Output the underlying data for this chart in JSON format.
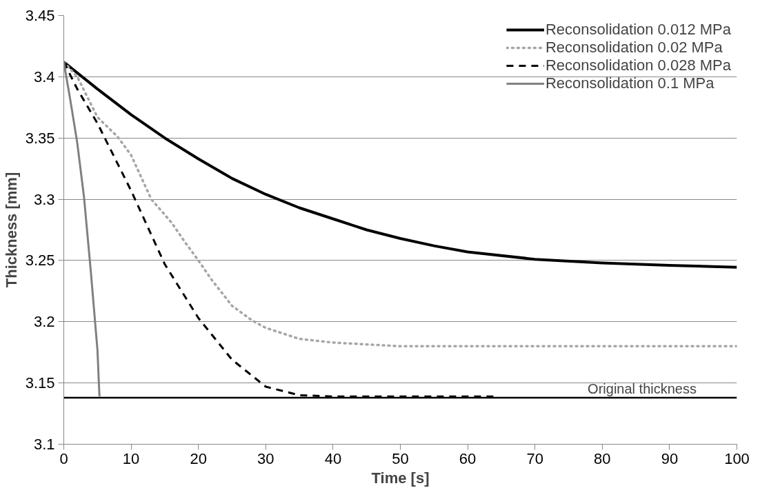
{
  "chart_data": {
    "type": "line",
    "xlabel": "Time [s]",
    "ylabel": "Thickness [mm]",
    "xlim": [
      0,
      100
    ],
    "xticks": [
      0,
      10,
      20,
      30,
      40,
      50,
      60,
      70,
      80,
      90,
      100
    ],
    "ylim": [
      3.1,
      3.45
    ],
    "yticks": [
      3.1,
      3.15,
      3.2,
      3.25,
      3.3,
      3.35,
      3.4,
      3.45
    ],
    "grid": "y",
    "legend": "top right",
    "series": [
      {
        "name": "Reconsolidation 0.012 MPa",
        "color": "#000000",
        "line_style": "solid",
        "x": [
          0,
          5,
          10,
          15,
          20,
          25,
          30,
          35,
          40,
          45,
          50,
          55,
          60,
          70,
          80,
          90,
          100
        ],
        "values": [
          3.412,
          3.39,
          3.369,
          3.35,
          3.333,
          3.317,
          3.304,
          3.293,
          3.284,
          3.275,
          3.268,
          3.262,
          3.257,
          3.251,
          3.248,
          3.246,
          3.2445
        ]
      },
      {
        "name": "Reconsolidation 0.02 MPa",
        "color": "#a6a6a6",
        "line_style": "dotted",
        "x": [
          0,
          2,
          5,
          8,
          10,
          13,
          16,
          18,
          20,
          22,
          25,
          28,
          30,
          35,
          40,
          50,
          60,
          70,
          80,
          90,
          100
        ],
        "values": [
          3.412,
          3.4,
          3.367,
          3.351,
          3.336,
          3.3,
          3.281,
          3.265,
          3.25,
          3.234,
          3.213,
          3.201,
          3.195,
          3.186,
          3.183,
          3.18,
          3.18,
          3.18,
          3.18,
          3.18,
          3.18
        ]
      },
      {
        "name": "Reconsolidation 0.028 MPa",
        "color": "#000000",
        "line_style": "dashed",
        "x": [
          0,
          2,
          5,
          10,
          15,
          20,
          25,
          30,
          35,
          40,
          50,
          64
        ],
        "values": [
          3.412,
          3.39,
          3.362,
          3.307,
          3.247,
          3.203,
          3.169,
          3.147,
          3.14,
          3.139,
          3.139,
          3.139
        ]
      },
      {
        "name": "Reconsolidation 0.1 MPa",
        "color": "#808080",
        "line_style": "solid",
        "x": [
          0,
          1,
          2,
          3,
          4,
          5,
          5.3
        ],
        "values": [
          3.412,
          3.38,
          3.346,
          3.302,
          3.242,
          3.177,
          3.139
        ]
      }
    ],
    "ref_lines": [
      {
        "axis": "y",
        "value": 3.138,
        "label": "Original thickness",
        "color": "#000000"
      }
    ]
  }
}
